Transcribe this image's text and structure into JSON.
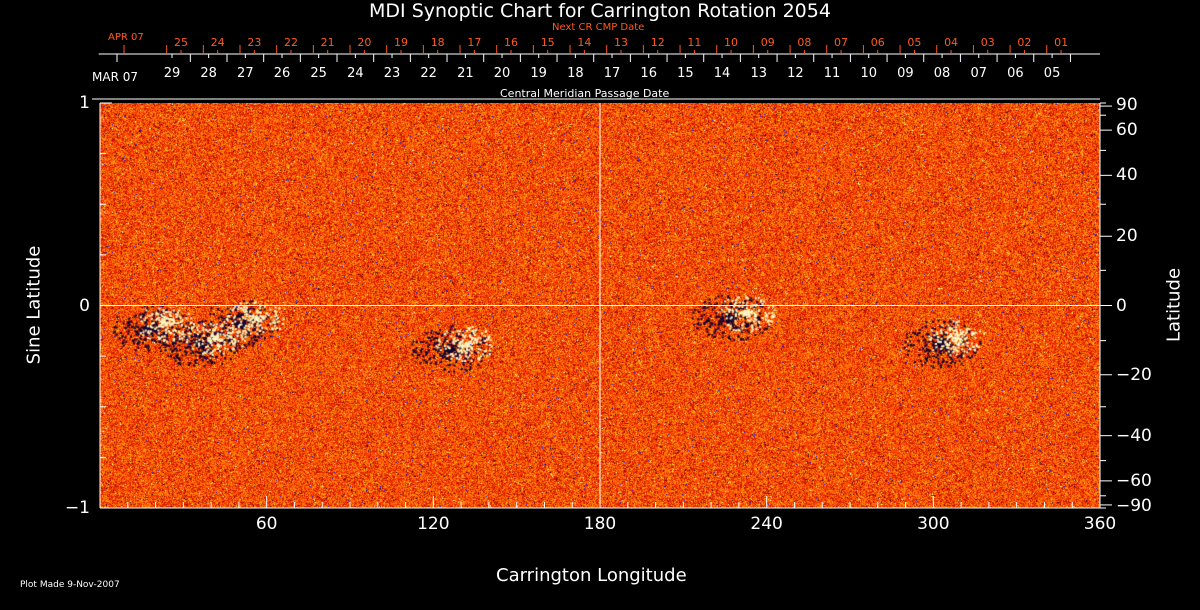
{
  "chart_data": {
    "type": "heatmap",
    "title": "MDI Synoptic Chart for Carrington Rotation 2054",
    "xlabel": "Carrington Longitude",
    "ylabel_left": "Sine Latitude",
    "ylabel_right": "Latitude",
    "xlim": [
      0,
      360
    ],
    "ylim": [
      -1,
      1
    ],
    "x_ticks": [
      "60",
      "120",
      "180",
      "240",
      "300",
      "360"
    ],
    "x_tick_values": [
      60,
      120,
      180,
      240,
      300,
      360
    ],
    "left_ticks": [
      "1",
      "0",
      "−1"
    ],
    "left_tick_values": [
      1,
      0,
      -1
    ],
    "right_ticks": [
      "90",
      "60",
      "40",
      "20",
      "0",
      "−20",
      "−40",
      "−60",
      "−90"
    ],
    "right_tick_values": [
      90,
      60,
      40,
      20,
      0,
      -20,
      -40,
      -60,
      -90
    ],
    "top_axis_label": "Central Meridian Passage Date",
    "top_axis_month": "MAR 07",
    "top_axis_days": [
      "29",
      "28",
      "27",
      "26",
      "25",
      "24",
      "23",
      "22",
      "21",
      "20",
      "19",
      "18",
      "17",
      "16",
      "15",
      "14",
      "13",
      "12",
      "11",
      "10",
      "09",
      "08",
      "07",
      "06",
      "05"
    ],
    "next_axis_label": "Next CR CMP Date",
    "next_axis_month": "APR 07",
    "next_axis_days": [
      "25",
      "24",
      "23",
      "22",
      "21",
      "20",
      "19",
      "18",
      "17",
      "16",
      "15",
      "14",
      "13",
      "12",
      "11",
      "10",
      "09",
      "08",
      "07",
      "06",
      "05",
      "04",
      "03",
      "02",
      "01"
    ],
    "colormap": [
      "#000060",
      "#1020ff",
      "#a00000",
      "#ff3000",
      "#ff7a00",
      "#ffd040",
      "#ffffe0"
    ],
    "grid_lines": {
      "longitude": 180,
      "sine_latitude": 0
    },
    "footer": "Plot Made  9-Nov-2007"
  }
}
